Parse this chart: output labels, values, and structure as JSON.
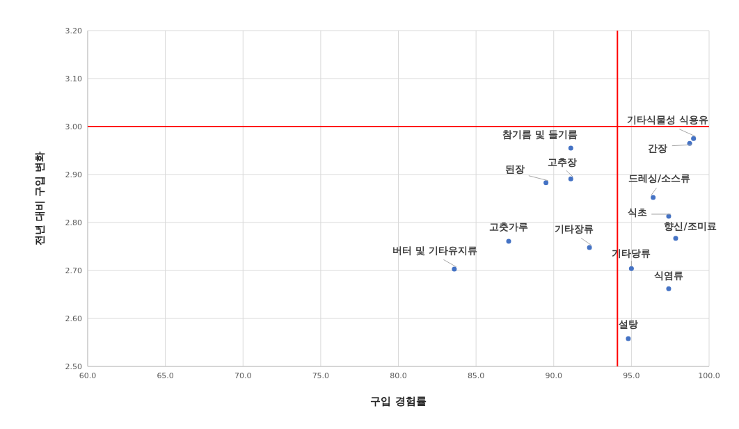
{
  "chart_data": {
    "type": "scatter",
    "xlabel": "구입 경험률",
    "ylabel": "전년 대비 구입 변화",
    "x": [
      99.0,
      98.75,
      91.1,
      91.1,
      89.5,
      96.4,
      97.4,
      97.85,
      87.1,
      92.3,
      83.6,
      95.0,
      97.4,
      94.8
    ],
    "series": [
      {
        "color": "#4472c4",
        "values": [
          2.975,
          2.965,
          2.955,
          2.891,
          2.883,
          2.852,
          2.813,
          2.767,
          2.761,
          2.748,
          2.703,
          2.704,
          2.662,
          2.558
        ]
      }
    ],
    "marker": "circle",
    "grid": true,
    "xlim": [
      60,
      100
    ],
    "ylim": [
      2.5,
      3.2
    ],
    "xticks": [
      {
        "value": 60,
        "label": "60.0"
      },
      {
        "value": 65,
        "label": "65.0"
      },
      {
        "value": 70,
        "label": "70.0"
      },
      {
        "value": 75,
        "label": "75.0"
      },
      {
        "value": 80,
        "label": "80.0"
      },
      {
        "value": 85,
        "label": "85.0"
      },
      {
        "value": 90,
        "label": "90.0"
      },
      {
        "value": 95,
        "label": "95.0"
      },
      {
        "value": 100,
        "label": "100.0"
      }
    ],
    "yticks": [
      {
        "value": 2.5,
        "label": "2.50"
      },
      {
        "value": 2.6,
        "label": "2.60"
      },
      {
        "value": 2.7,
        "label": "2.70"
      },
      {
        "value": 2.8,
        "label": "2.80"
      },
      {
        "value": 2.9,
        "label": "2.90"
      },
      {
        "value": 3.0,
        "label": "3.00"
      },
      {
        "value": 3.1,
        "label": "3.10"
      },
      {
        "value": 3.2,
        "label": "3.20"
      }
    ],
    "ref_lines": [
      {
        "axis": "x",
        "value": 94.1,
        "color": "#ff0000"
      },
      {
        "axis": "y",
        "value": 3.0,
        "color": "#ff0000"
      }
    ],
    "annotations": [
      {
        "text": "기타식물성 식용유",
        "x": 99.0,
        "y": 2.975
      },
      {
        "text": "간장",
        "x": 98.75,
        "y": 2.965
      },
      {
        "text": "참기름 및 들기름",
        "x": 91.1,
        "y": 2.955
      },
      {
        "text": "고추장",
        "x": 91.1,
        "y": 2.891
      },
      {
        "text": "된장",
        "x": 89.5,
        "y": 2.883
      },
      {
        "text": "드레싱/소스류",
        "x": 96.4,
        "y": 2.852
      },
      {
        "text": "식초",
        "x": 97.4,
        "y": 2.813
      },
      {
        "text": "향신/조미료",
        "x": 97.85,
        "y": 2.767
      },
      {
        "text": "고춧가루",
        "x": 87.1,
        "y": 2.761
      },
      {
        "text": "기타장류",
        "x": 92.3,
        "y": 2.748
      },
      {
        "text": "버터 및 기타유지류",
        "x": 83.6,
        "y": 2.703
      },
      {
        "text": "기타당류",
        "x": 95.0,
        "y": 2.704
      },
      {
        "text": "식염류",
        "x": 97.4,
        "y": 2.662
      },
      {
        "text": "설탕",
        "x": 94.8,
        "y": 2.558
      }
    ]
  }
}
